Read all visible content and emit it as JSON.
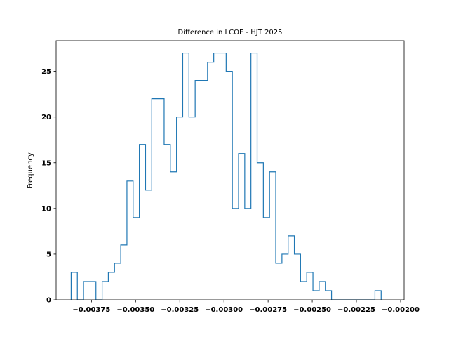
{
  "chart_data": {
    "type": "histogram",
    "title": "Difference in LCOE - HJT 2025",
    "xlabel": "",
    "ylabel": "Frequency",
    "xlim": [
      -0.00395,
      -0.00198
    ],
    "ylim": [
      0,
      28.35
    ],
    "x_ticks": [
      -0.00375,
      -0.0035,
      -0.00325,
      -0.003,
      -0.00275,
      -0.0025,
      -0.00225,
      -0.002
    ],
    "x_tick_labels": [
      "−0.00375",
      "−0.00350",
      "−0.00325",
      "−0.00300",
      "−0.00275",
      "−0.00250",
      "−0.00225",
      "−0.00200"
    ],
    "y_ticks": [
      0,
      5,
      10,
      15,
      20,
      25
    ],
    "y_tick_labels": [
      "0",
      "5",
      "10",
      "15",
      "20",
      "25"
    ],
    "grid": false,
    "histtype": "step",
    "line_color": "#1f77b4",
    "bin_start": -0.003865,
    "bin_width": 3.51e-05,
    "counts": [
      3,
      0,
      2,
      2,
      0,
      2,
      3,
      4,
      6,
      13,
      9,
      17,
      12,
      22,
      22,
      17,
      14,
      20,
      27,
      20,
      24,
      24,
      26,
      27,
      27,
      25,
      10,
      16,
      10,
      27,
      15,
      9,
      14,
      4,
      5,
      7,
      5,
      2,
      3,
      1,
      2,
      1,
      0,
      0,
      0,
      0,
      0,
      0,
      0,
      1
    ]
  }
}
